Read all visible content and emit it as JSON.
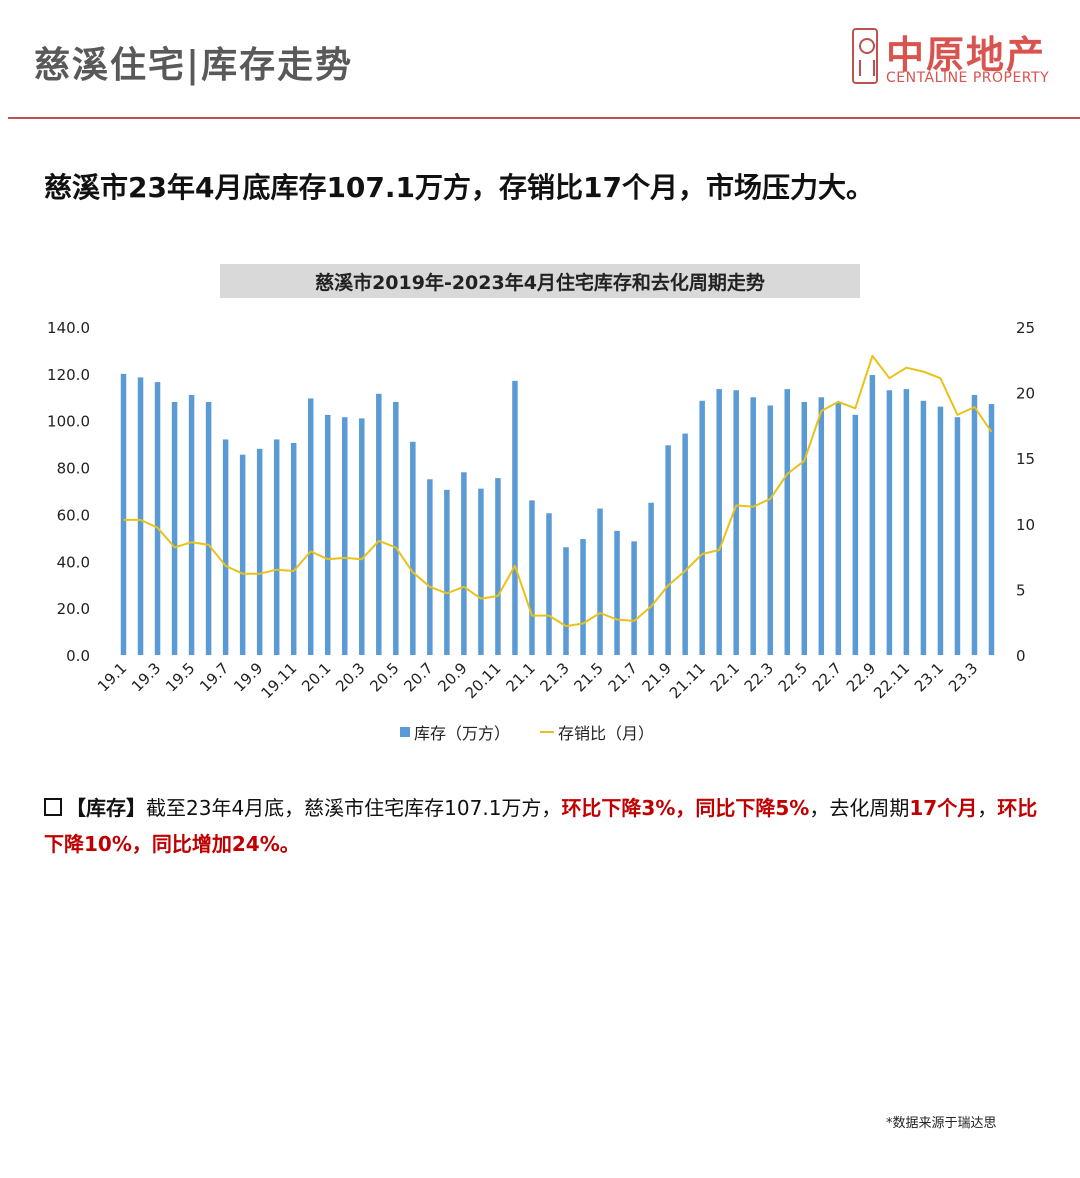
{
  "header": {
    "title": "慈溪住宅|库存走势",
    "logo_cn": "中原地产",
    "logo_en": "CENTALINE PROPERTY"
  },
  "headline": "慈溪市23年4月底库存107.1万方，存销比17个月，市场压力大。",
  "chart_data": {
    "type": "bar",
    "title": "慈溪市2019年-2023年4月住宅库存和去化周期走势",
    "categories": [
      "19.1",
      "19.2",
      "19.3",
      "19.4",
      "19.5",
      "19.6",
      "19.7",
      "19.8",
      "19.9",
      "19.10",
      "19.11",
      "19.12",
      "20.1",
      "20.2",
      "20.3",
      "20.4",
      "20.5",
      "20.6",
      "20.7",
      "20.8",
      "20.9",
      "20.10",
      "20.11",
      "20.12",
      "21.1",
      "21.2",
      "21.3",
      "21.4",
      "21.5",
      "21.6",
      "21.7",
      "21.8",
      "21.9",
      "21.10",
      "21.11",
      "21.12",
      "22.1",
      "22.2",
      "22.3",
      "22.4",
      "22.5",
      "22.6",
      "22.7",
      "22.8",
      "22.9",
      "22.10",
      "22.11",
      "22.12",
      "23.1",
      "23.2",
      "23.3",
      "23.4"
    ],
    "tick_labels": [
      "19.1",
      "19.3",
      "19.5",
      "19.7",
      "19.9",
      "19.11",
      "20.1",
      "20.3",
      "20.5",
      "20.7",
      "20.9",
      "20.11",
      "21.1",
      "21.3",
      "21.5",
      "21.7",
      "21.9",
      "21.11",
      "22.1",
      "22.3",
      "22.5",
      "22.7",
      "22.9",
      "22.11",
      "23.1",
      "23.3"
    ],
    "series": [
      {
        "name": "库存（万方）",
        "type": "bar",
        "axis": "left",
        "color": "#5b9bd5",
        "values": [
          120.0,
          118.5,
          116.5,
          108.0,
          111.0,
          108.0,
          92.0,
          85.5,
          88.0,
          92.0,
          90.5,
          109.5,
          102.5,
          101.5,
          101.0,
          111.5,
          108.0,
          91.0,
          75.0,
          70.5,
          78.0,
          71.0,
          75.5,
          117.0,
          66.0,
          60.5,
          46.0,
          49.5,
          62.5,
          53.0,
          48.5,
          65.0,
          89.5,
          94.5,
          108.5,
          113.5,
          113.0,
          110.0,
          106.5,
          113.5,
          108.0,
          110.0,
          108.0,
          102.5,
          119.5,
          113.0,
          113.5,
          108.5,
          106.0,
          101.5,
          111.0,
          107.1
        ]
      },
      {
        "name": "存销比（月）",
        "type": "line",
        "axis": "right",
        "color": "#e8c21a",
        "values": [
          10.3,
          10.3,
          9.7,
          8.2,
          8.6,
          8.4,
          6.8,
          6.2,
          6.2,
          6.5,
          6.4,
          7.9,
          7.3,
          7.4,
          7.3,
          8.7,
          8.2,
          6.3,
          5.2,
          4.7,
          5.2,
          4.3,
          4.5,
          6.8,
          3.0,
          3.0,
          2.2,
          2.4,
          3.2,
          2.7,
          2.6,
          3.7,
          5.3,
          6.4,
          7.7,
          8.0,
          11.4,
          11.3,
          11.9,
          13.8,
          14.8,
          18.6,
          19.3,
          18.8,
          22.8,
          21.1,
          21.9,
          21.6,
          21.1,
          18.3,
          18.9,
          17.0
        ]
      }
    ],
    "ylim_left": [
      0,
      140
    ],
    "ylim_right": [
      0,
      25
    ],
    "yticks_left": [
      "0.0",
      "20.0",
      "40.0",
      "60.0",
      "80.0",
      "100.0",
      "120.0",
      "140.0"
    ],
    "yticks_right": [
      "0",
      "5",
      "10",
      "15",
      "20",
      "25"
    ],
    "legend_position": "bottom",
    "grid": false
  },
  "paragraph": {
    "tag": "【库存】",
    "text1": "截至23年4月底，慈溪市住宅库存107.1万方，",
    "red1": "环比下降3%，同比下降5%",
    "text2": "，去化周期",
    "red2": "17个月",
    "text3": "，",
    "red3": "环比下降10%，同比增加24%。"
  },
  "source": "*数据来源于瑞达思"
}
